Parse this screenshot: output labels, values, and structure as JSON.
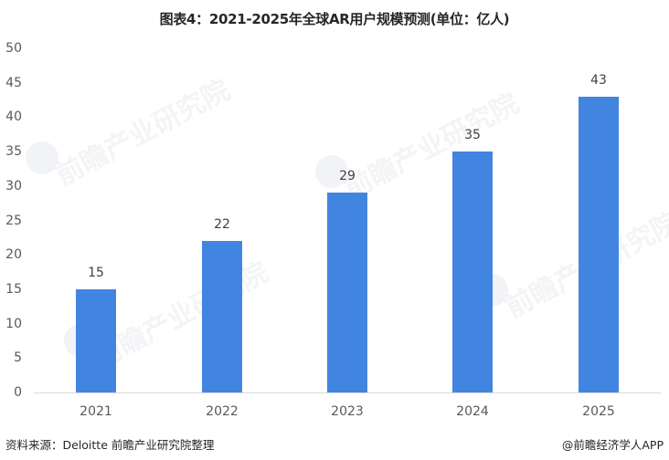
{
  "title": "图表4：2021-2025年全球AR用户规模预测(单位：亿人)",
  "chart_data": {
    "type": "bar",
    "title": "图表4：2021-2025年全球AR用户规模预测(单位：亿人)",
    "categories": [
      "2021",
      "2022",
      "2023",
      "2024",
      "2025"
    ],
    "values": [
      15,
      22,
      29,
      35,
      43
    ],
    "xlabel": "",
    "ylabel": "",
    "unit": "亿人",
    "ylim": [
      0,
      50
    ],
    "yticks": [
      0,
      5,
      10,
      15,
      20,
      25,
      30,
      35,
      40,
      45,
      50
    ],
    "grid": false,
    "legend": null,
    "bar_color": "#4285e0",
    "data_labels": [
      "15",
      "22",
      "29",
      "35",
      "43"
    ]
  },
  "yticks_labels": [
    "0",
    "5",
    "10",
    "15",
    "20",
    "25",
    "30",
    "35",
    "40",
    "45",
    "50"
  ],
  "watermark": "前瞻产业研究院",
  "footer": {
    "source": "资料来源：Deloitte 前瞻产业研究院整理",
    "credit": "@前瞻经济学人APP"
  }
}
